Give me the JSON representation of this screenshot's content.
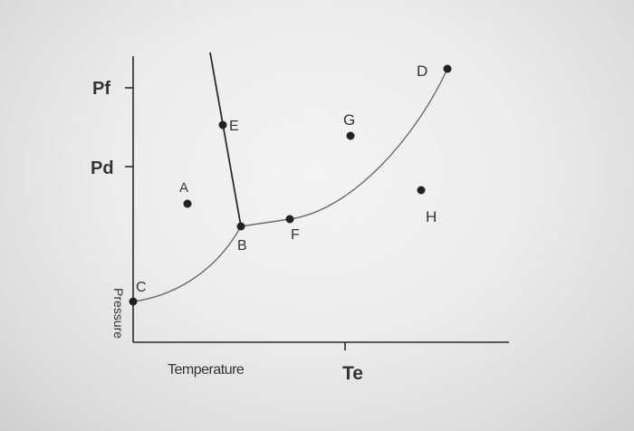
{
  "axes": {
    "y_label": "Pressure",
    "x_label": "Temperature",
    "y_ticks": [
      "Pf",
      "Pd"
    ],
    "x_ticks": [
      "Te"
    ]
  },
  "points": {
    "A": "A",
    "B": "B",
    "C": "C",
    "D": "D",
    "E": "E",
    "F": "F",
    "G": "G",
    "H": "H"
  },
  "colors": {
    "background": "#ececec",
    "ink": "#222222",
    "curve": "#6a6a6a"
  }
}
